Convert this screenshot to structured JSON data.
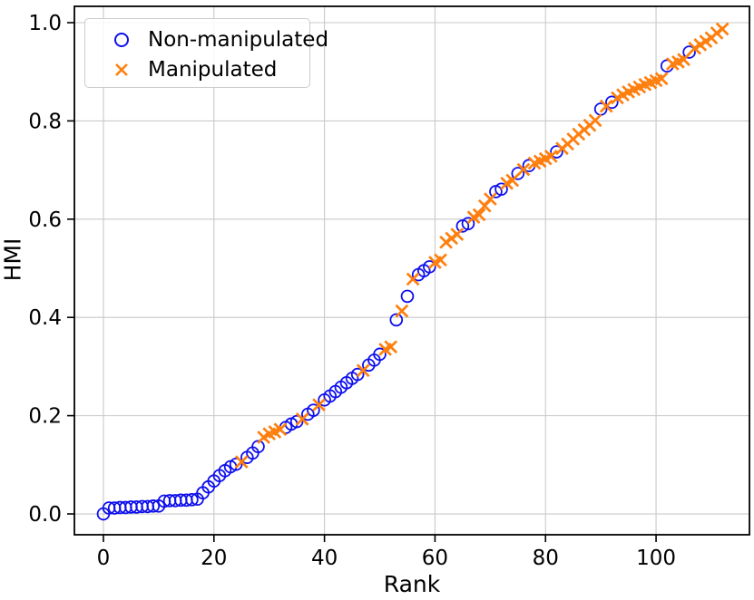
{
  "figure": {
    "background": "#ffffff"
  },
  "colors": {
    "grid": "#c9c9c9",
    "spine": "#000000",
    "tick_text": "#000000",
    "non_manipulated": "#0f0fee",
    "manipulated": "#ff7f0e"
  },
  "chart_data": {
    "type": "scatter",
    "title": "",
    "xlabel": "Rank",
    "ylabel": "HMI",
    "xlim": [
      -5.25,
      116.9
    ],
    "ylim": [
      -0.0424,
      1.0332
    ],
    "grid": true,
    "legend_position": "upper left",
    "x_ticks": [
      0,
      20,
      40,
      60,
      80,
      100
    ],
    "x_tick_labels": [
      "0",
      "20",
      "40",
      "60",
      "80",
      "100"
    ],
    "y_ticks": [
      0.0,
      0.2,
      0.4,
      0.6,
      0.8,
      1.0
    ],
    "y_tick_labels": [
      "0.0",
      "0.2",
      "0.4",
      "0.6",
      "0.8",
      "1.0"
    ],
    "series": [
      {
        "name": "Non-manipulated",
        "marker": "circle",
        "color": "#0f0fee",
        "points": [
          [
            0,
            0.0
          ],
          [
            1,
            0.012
          ],
          [
            2,
            0.012
          ],
          [
            3,
            0.013
          ],
          [
            4,
            0.013
          ],
          [
            5,
            0.014
          ],
          [
            6,
            0.014
          ],
          [
            7,
            0.015
          ],
          [
            8,
            0.015
          ],
          [
            9,
            0.016
          ],
          [
            10,
            0.016
          ],
          [
            11,
            0.026
          ],
          [
            12,
            0.027
          ],
          [
            13,
            0.027
          ],
          [
            14,
            0.028
          ],
          [
            15,
            0.028
          ],
          [
            16,
            0.029
          ],
          [
            17,
            0.03
          ],
          [
            18,
            0.043
          ],
          [
            19,
            0.055
          ],
          [
            20,
            0.067
          ],
          [
            21,
            0.078
          ],
          [
            22,
            0.088
          ],
          [
            23,
            0.096
          ],
          [
            24,
            0.101
          ],
          [
            26,
            0.115
          ],
          [
            27,
            0.124
          ],
          [
            28,
            0.137
          ],
          [
            33,
            0.176
          ],
          [
            34,
            0.183
          ],
          [
            35,
            0.188
          ],
          [
            37,
            0.203
          ],
          [
            38,
            0.211
          ],
          [
            40,
            0.232
          ],
          [
            41,
            0.24
          ],
          [
            42,
            0.249
          ],
          [
            43,
            0.258
          ],
          [
            44,
            0.267
          ],
          [
            45,
            0.276
          ],
          [
            46,
            0.284
          ],
          [
            48,
            0.303
          ],
          [
            49,
            0.313
          ],
          [
            50,
            0.325
          ],
          [
            53,
            0.395
          ],
          [
            55,
            0.443
          ],
          [
            57,
            0.487
          ],
          [
            58,
            0.495
          ],
          [
            59,
            0.503
          ],
          [
            65,
            0.586
          ],
          [
            66,
            0.591
          ],
          [
            71,
            0.656
          ],
          [
            72,
            0.661
          ],
          [
            75,
            0.693
          ],
          [
            77,
            0.709
          ],
          [
            82,
            0.737
          ],
          [
            90,
            0.824
          ],
          [
            92,
            0.838
          ],
          [
            102,
            0.912
          ],
          [
            106,
            0.94
          ]
        ]
      },
      {
        "name": "Manipulated",
        "marker": "x",
        "color": "#ff7f0e",
        "points": [
          [
            25,
            0.106
          ],
          [
            29,
            0.156
          ],
          [
            30,
            0.163
          ],
          [
            31,
            0.167
          ],
          [
            32,
            0.172
          ],
          [
            36,
            0.193
          ],
          [
            39,
            0.222
          ],
          [
            47,
            0.292
          ],
          [
            51,
            0.335
          ],
          [
            52,
            0.34
          ],
          [
            54,
            0.413
          ],
          [
            56,
            0.478
          ],
          [
            60,
            0.512
          ],
          [
            61,
            0.517
          ],
          [
            62,
            0.553
          ],
          [
            63,
            0.561
          ],
          [
            64,
            0.569
          ],
          [
            67,
            0.604
          ],
          [
            68,
            0.609
          ],
          [
            69,
            0.627
          ],
          [
            70,
            0.641
          ],
          [
            73,
            0.673
          ],
          [
            74,
            0.679
          ],
          [
            76,
            0.701
          ],
          [
            78,
            0.714
          ],
          [
            79,
            0.718
          ],
          [
            80,
            0.723
          ],
          [
            81,
            0.728
          ],
          [
            83,
            0.744
          ],
          [
            84,
            0.753
          ],
          [
            85,
            0.763
          ],
          [
            86,
            0.773
          ],
          [
            87,
            0.782
          ],
          [
            88,
            0.791
          ],
          [
            89,
            0.801
          ],
          [
            91,
            0.83
          ],
          [
            93,
            0.847
          ],
          [
            94,
            0.853
          ],
          [
            95,
            0.859
          ],
          [
            96,
            0.864
          ],
          [
            97,
            0.869
          ],
          [
            98,
            0.874
          ],
          [
            99,
            0.878
          ],
          [
            100,
            0.882
          ],
          [
            101,
            0.886
          ],
          [
            103,
            0.916
          ],
          [
            104,
            0.92
          ],
          [
            105,
            0.925
          ],
          [
            107,
            0.948
          ],
          [
            108,
            0.955
          ],
          [
            109,
            0.962
          ],
          [
            110,
            0.969
          ],
          [
            111,
            0.979
          ],
          [
            112,
            0.987
          ]
        ]
      }
    ]
  }
}
